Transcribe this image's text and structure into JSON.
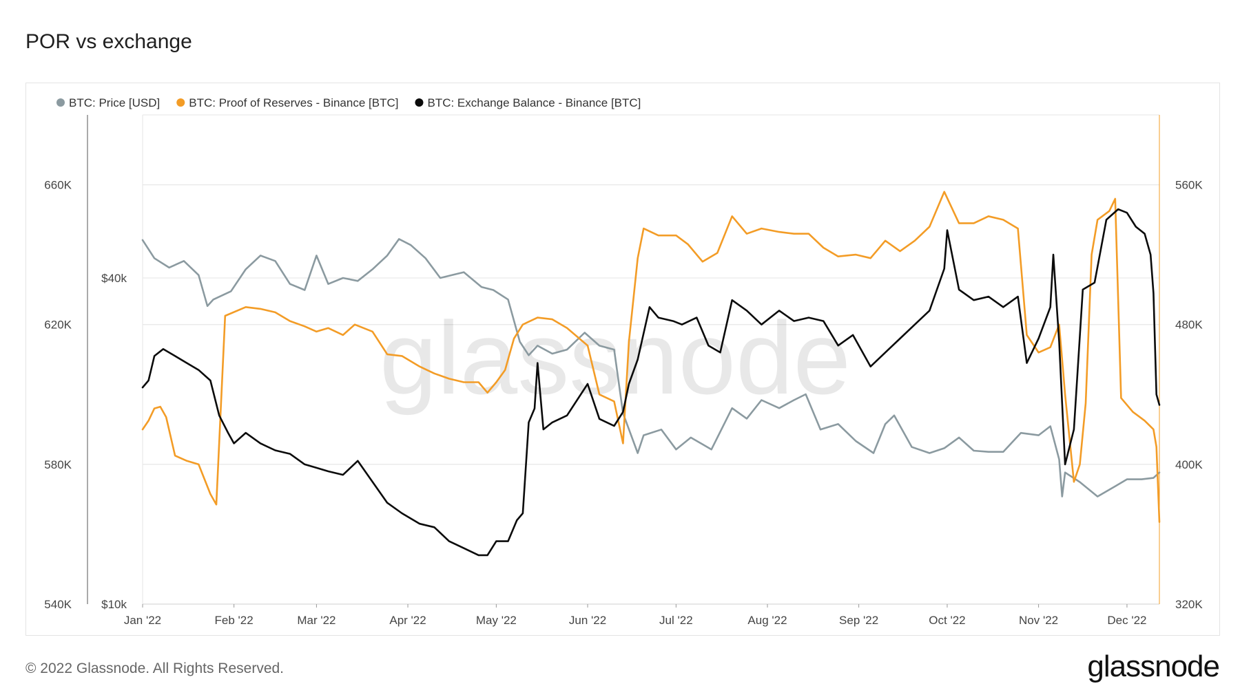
{
  "title": "POR vs exchange",
  "footer": {
    "copyright": "© 2022 Glassnode. All Rights Reserved.",
    "logo": "glassnode"
  },
  "watermark": "glassnode",
  "colors": {
    "price": "#8b9aa0",
    "por": "#f39c26",
    "balance": "#0b0b0b",
    "grid": "#e6e6e6",
    "axis": "#444444"
  },
  "chart_data": {
    "type": "line",
    "title": "POR vs exchange",
    "grid": true,
    "legend_position": "top-left",
    "x_ticks": [
      "Jan '22",
      "Feb '22",
      "Mar '22",
      "Apr '22",
      "May '22",
      "Jun '22",
      "Jul '22",
      "Aug '22",
      "Sep '22",
      "Oct '22",
      "Nov '22",
      "Dec '22"
    ],
    "x_range": [
      "2022-01-01",
      "2022-12-12"
    ],
    "axes": {
      "left_outer": {
        "ticks": [
          "540K",
          "580K",
          "620K",
          "660K"
        ],
        "range": [
          540000,
          680000
        ]
      },
      "left_inner": {
        "ticks": [
          "$10k",
          "$40k"
        ],
        "scale": "log",
        "range": [
          10000,
          80000
        ]
      },
      "right": {
        "ticks": [
          "320K",
          "400K",
          "480K",
          "560K"
        ],
        "range": [
          320000,
          600000
        ]
      }
    },
    "series": [
      {
        "name": "BTC: Price [USD]",
        "axis": "left_inner",
        "points": [
          [
            "2022-01-01",
            47000
          ],
          [
            "2022-01-05",
            43500
          ],
          [
            "2022-01-10",
            41800
          ],
          [
            "2022-01-15",
            43000
          ],
          [
            "2022-01-20",
            40500
          ],
          [
            "2022-01-23",
            35500
          ],
          [
            "2022-01-25",
            36500
          ],
          [
            "2022-01-31",
            37800
          ],
          [
            "2022-02-05",
            41500
          ],
          [
            "2022-02-10",
            44000
          ],
          [
            "2022-02-15",
            43000
          ],
          [
            "2022-02-20",
            39000
          ],
          [
            "2022-02-25",
            38000
          ],
          [
            "2022-03-01",
            44000
          ],
          [
            "2022-03-05",
            39000
          ],
          [
            "2022-03-10",
            40000
          ],
          [
            "2022-03-15",
            39500
          ],
          [
            "2022-03-20",
            41500
          ],
          [
            "2022-03-25",
            44000
          ],
          [
            "2022-03-29",
            47200
          ],
          [
            "2022-04-02",
            46000
          ],
          [
            "2022-04-07",
            43500
          ],
          [
            "2022-04-12",
            40000
          ],
          [
            "2022-04-16",
            40500
          ],
          [
            "2022-04-20",
            41000
          ],
          [
            "2022-04-26",
            38500
          ],
          [
            "2022-04-30",
            38000
          ],
          [
            "2022-05-05",
            36500
          ],
          [
            "2022-05-09",
            30500
          ],
          [
            "2022-05-12",
            28800
          ],
          [
            "2022-05-15",
            30000
          ],
          [
            "2022-05-20",
            29000
          ],
          [
            "2022-05-25",
            29500
          ],
          [
            "2022-05-31",
            31700
          ],
          [
            "2022-06-05",
            30000
          ],
          [
            "2022-06-10",
            29500
          ],
          [
            "2022-06-13",
            22500
          ],
          [
            "2022-06-18",
            19000
          ],
          [
            "2022-06-20",
            20500
          ],
          [
            "2022-06-26",
            21000
          ],
          [
            "2022-07-01",
            19300
          ],
          [
            "2022-07-06",
            20300
          ],
          [
            "2022-07-13",
            19300
          ],
          [
            "2022-07-20",
            23000
          ],
          [
            "2022-07-25",
            22000
          ],
          [
            "2022-07-30",
            23800
          ],
          [
            "2022-08-05",
            23000
          ],
          [
            "2022-08-10",
            23800
          ],
          [
            "2022-08-14",
            24400
          ],
          [
            "2022-08-19",
            21000
          ],
          [
            "2022-08-25",
            21500
          ],
          [
            "2022-08-31",
            20000
          ],
          [
            "2022-09-06",
            19000
          ],
          [
            "2022-09-10",
            21500
          ],
          [
            "2022-09-13",
            22300
          ],
          [
            "2022-09-19",
            19500
          ],
          [
            "2022-09-25",
            19000
          ],
          [
            "2022-09-30",
            19400
          ],
          [
            "2022-10-05",
            20300
          ],
          [
            "2022-10-10",
            19200
          ],
          [
            "2022-10-15",
            19100
          ],
          [
            "2022-10-20",
            19100
          ],
          [
            "2022-10-26",
            20700
          ],
          [
            "2022-11-01",
            20500
          ],
          [
            "2022-11-05",
            21300
          ],
          [
            "2022-11-08",
            18500
          ],
          [
            "2022-11-09",
            15800
          ],
          [
            "2022-11-10",
            17500
          ],
          [
            "2022-11-15",
            16800
          ],
          [
            "2022-11-21",
            15800
          ],
          [
            "2022-11-27",
            16500
          ],
          [
            "2022-12-01",
            17000
          ],
          [
            "2022-12-06",
            17000
          ],
          [
            "2022-12-10",
            17100
          ],
          [
            "2022-12-12",
            17500
          ]
        ]
      },
      {
        "name": "BTC: Proof of Reserves - Binance [BTC]",
        "axis": "right",
        "points": [
          [
            "2022-01-01",
            420000
          ],
          [
            "2022-01-03",
            425000
          ],
          [
            "2022-01-05",
            432000
          ],
          [
            "2022-01-07",
            433000
          ],
          [
            "2022-01-09",
            427000
          ],
          [
            "2022-01-12",
            405000
          ],
          [
            "2022-01-16",
            402000
          ],
          [
            "2022-01-20",
            400000
          ],
          [
            "2022-01-24",
            383000
          ],
          [
            "2022-01-26",
            377000
          ],
          [
            "2022-01-29",
            485000
          ],
          [
            "2022-02-05",
            490000
          ],
          [
            "2022-02-10",
            489000
          ],
          [
            "2022-02-15",
            487000
          ],
          [
            "2022-02-20",
            482000
          ],
          [
            "2022-02-25",
            479000
          ],
          [
            "2022-03-01",
            476000
          ],
          [
            "2022-03-05",
            478000
          ],
          [
            "2022-03-10",
            474000
          ],
          [
            "2022-03-14",
            480000
          ],
          [
            "2022-03-20",
            476000
          ],
          [
            "2022-03-25",
            463000
          ],
          [
            "2022-03-30",
            462000
          ],
          [
            "2022-04-05",
            456000
          ],
          [
            "2022-04-10",
            452000
          ],
          [
            "2022-04-15",
            449000
          ],
          [
            "2022-04-20",
            447000
          ],
          [
            "2022-04-25",
            447000
          ],
          [
            "2022-04-28",
            441000
          ],
          [
            "2022-05-01",
            447000
          ],
          [
            "2022-05-04",
            454000
          ],
          [
            "2022-05-07",
            472000
          ],
          [
            "2022-05-10",
            480000
          ],
          [
            "2022-05-15",
            484000
          ],
          [
            "2022-05-20",
            483000
          ],
          [
            "2022-05-25",
            478000
          ],
          [
            "2022-06-01",
            468000
          ],
          [
            "2022-06-05",
            440000
          ],
          [
            "2022-06-10",
            436000
          ],
          [
            "2022-06-13",
            412000
          ],
          [
            "2022-06-15",
            470000
          ],
          [
            "2022-06-18",
            518000
          ],
          [
            "2022-06-20",
            535000
          ],
          [
            "2022-06-25",
            531000
          ],
          [
            "2022-07-01",
            531000
          ],
          [
            "2022-07-05",
            526000
          ],
          [
            "2022-07-10",
            516000
          ],
          [
            "2022-07-15",
            521000
          ],
          [
            "2022-07-20",
            542000
          ],
          [
            "2022-07-25",
            532000
          ],
          [
            "2022-07-30",
            535000
          ],
          [
            "2022-08-05",
            533000
          ],
          [
            "2022-08-10",
            532000
          ],
          [
            "2022-08-15",
            532000
          ],
          [
            "2022-08-20",
            524000
          ],
          [
            "2022-08-25",
            519000
          ],
          [
            "2022-08-31",
            520000
          ],
          [
            "2022-09-05",
            518000
          ],
          [
            "2022-09-10",
            528000
          ],
          [
            "2022-09-15",
            522000
          ],
          [
            "2022-09-20",
            528000
          ],
          [
            "2022-09-25",
            536000
          ],
          [
            "2022-09-30",
            556000
          ],
          [
            "2022-10-05",
            538000
          ],
          [
            "2022-10-10",
            538000
          ],
          [
            "2022-10-15",
            542000
          ],
          [
            "2022-10-20",
            540000
          ],
          [
            "2022-10-25",
            535000
          ],
          [
            "2022-10-28",
            474000
          ],
          [
            "2022-11-01",
            464000
          ],
          [
            "2022-11-05",
            467000
          ],
          [
            "2022-11-08",
            480000
          ],
          [
            "2022-11-10",
            440000
          ],
          [
            "2022-11-13",
            390000
          ],
          [
            "2022-11-15",
            400000
          ],
          [
            "2022-11-17",
            435000
          ],
          [
            "2022-11-19",
            520000
          ],
          [
            "2022-11-21",
            540000
          ],
          [
            "2022-11-25",
            545000
          ],
          [
            "2022-11-27",
            552000
          ],
          [
            "2022-11-29",
            438000
          ],
          [
            "2022-12-03",
            430000
          ],
          [
            "2022-12-07",
            425000
          ],
          [
            "2022-12-10",
            420000
          ],
          [
            "2022-12-11",
            410000
          ],
          [
            "2022-12-12",
            367000
          ]
        ]
      },
      {
        "name": "BTC: Exchange Balance - Binance [BTC]",
        "axis": "left_outer",
        "points": [
          [
            "2022-01-01",
            602000
          ],
          [
            "2022-01-03",
            604000
          ],
          [
            "2022-01-05",
            611000
          ],
          [
            "2022-01-08",
            613000
          ],
          [
            "2022-01-12",
            611000
          ],
          [
            "2022-01-16",
            609000
          ],
          [
            "2022-01-20",
            607000
          ],
          [
            "2022-01-24",
            604000
          ],
          [
            "2022-01-27",
            594000
          ],
          [
            "2022-01-30",
            589000
          ],
          [
            "2022-02-01",
            586000
          ],
          [
            "2022-02-05",
            589000
          ],
          [
            "2022-02-10",
            586000
          ],
          [
            "2022-02-15",
            584000
          ],
          [
            "2022-02-20",
            583000
          ],
          [
            "2022-02-25",
            580000
          ],
          [
            "2022-03-01",
            579000
          ],
          [
            "2022-03-05",
            578000
          ],
          [
            "2022-03-10",
            577000
          ],
          [
            "2022-03-15",
            581000
          ],
          [
            "2022-03-20",
            575000
          ],
          [
            "2022-03-25",
            569000
          ],
          [
            "2022-03-30",
            566000
          ],
          [
            "2022-04-05",
            563000
          ],
          [
            "2022-04-10",
            562000
          ],
          [
            "2022-04-15",
            558000
          ],
          [
            "2022-04-20",
            556000
          ],
          [
            "2022-04-25",
            554000
          ],
          [
            "2022-04-28",
            554000
          ],
          [
            "2022-05-01",
            558000
          ],
          [
            "2022-05-05",
            558000
          ],
          [
            "2022-05-08",
            564000
          ],
          [
            "2022-05-10",
            566000
          ],
          [
            "2022-05-12",
            592000
          ],
          [
            "2022-05-14",
            596000
          ],
          [
            "2022-05-15",
            609000
          ],
          [
            "2022-05-17",
            590000
          ],
          [
            "2022-05-20",
            592000
          ],
          [
            "2022-05-25",
            594000
          ],
          [
            "2022-06-01",
            603000
          ],
          [
            "2022-06-05",
            593000
          ],
          [
            "2022-06-10",
            591000
          ],
          [
            "2022-06-13",
            595000
          ],
          [
            "2022-06-15",
            603000
          ],
          [
            "2022-06-18",
            610000
          ],
          [
            "2022-06-22",
            625000
          ],
          [
            "2022-06-25",
            622000
          ],
          [
            "2022-06-30",
            621000
          ],
          [
            "2022-07-03",
            620000
          ],
          [
            "2022-07-08",
            622000
          ],
          [
            "2022-07-12",
            614000
          ],
          [
            "2022-07-16",
            612000
          ],
          [
            "2022-07-20",
            627000
          ],
          [
            "2022-07-25",
            624000
          ],
          [
            "2022-07-30",
            620000
          ],
          [
            "2022-08-05",
            624000
          ],
          [
            "2022-08-10",
            621000
          ],
          [
            "2022-08-15",
            622000
          ],
          [
            "2022-08-20",
            621000
          ],
          [
            "2022-08-25",
            614000
          ],
          [
            "2022-08-30",
            617000
          ],
          [
            "2022-09-05",
            608000
          ],
          [
            "2022-09-10",
            612000
          ],
          [
            "2022-09-15",
            616000
          ],
          [
            "2022-09-20",
            620000
          ],
          [
            "2022-09-25",
            624000
          ],
          [
            "2022-09-30",
            636000
          ],
          [
            "2022-10-01",
            647000
          ],
          [
            "2022-10-05",
            630000
          ],
          [
            "2022-10-10",
            627000
          ],
          [
            "2022-10-15",
            628000
          ],
          [
            "2022-10-20",
            625000
          ],
          [
            "2022-10-25",
            628000
          ],
          [
            "2022-10-28",
            609000
          ],
          [
            "2022-11-01",
            616000
          ],
          [
            "2022-11-05",
            625000
          ],
          [
            "2022-11-06",
            640000
          ],
          [
            "2022-11-08",
            615000
          ],
          [
            "2022-11-10",
            580000
          ],
          [
            "2022-11-13",
            590000
          ],
          [
            "2022-11-16",
            630000
          ],
          [
            "2022-11-20",
            632000
          ],
          [
            "2022-11-24",
            650000
          ],
          [
            "2022-11-28",
            653000
          ],
          [
            "2022-12-01",
            652000
          ],
          [
            "2022-12-04",
            648000
          ],
          [
            "2022-12-07",
            646000
          ],
          [
            "2022-12-09",
            640000
          ],
          [
            "2022-12-10",
            629000
          ],
          [
            "2022-12-11",
            600000
          ],
          [
            "2022-12-12",
            597000
          ]
        ]
      }
    ]
  }
}
